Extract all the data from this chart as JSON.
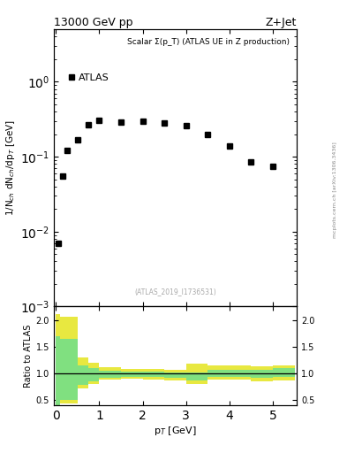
{
  "title_left": "13000 GeV pp",
  "title_right": "Z+Jet",
  "main_title": "Scalar Σ(p_T) (ATLAS UE in Z production)",
  "legend_label": "ATLAS",
  "ylabel_main": "1/N$_{ch}$ dN$_{ch}$/dp$_T$ [GeV]",
  "ylabel_ratio": "Ratio to ATLAS",
  "xlabel": "p$_T$ [GeV]",
  "watermark": "(ATLAS_2019_I1736531)",
  "side_text": "mcplots.cern.ch [arXiv:1306.3436]",
  "data_x": [
    0.05,
    0.15,
    0.25,
    0.5,
    0.75,
    1.0,
    1.5,
    2.0,
    2.5,
    3.0,
    3.5,
    4.0,
    4.5,
    5.0
  ],
  "data_y": [
    0.007,
    0.055,
    0.12,
    0.17,
    0.27,
    0.31,
    0.29,
    0.3,
    0.28,
    0.26,
    0.2,
    0.14,
    0.085,
    0.075
  ],
  "ylim_main": [
    0.001,
    5.0
  ],
  "xlim": [
    -0.05,
    5.55
  ],
  "xlim_ratio": [
    -0.05,
    5.55
  ],
  "xticks": [
    0,
    1,
    2,
    3,
    4,
    5
  ],
  "ylim_ratio": [
    0.4,
    2.25
  ],
  "ratio_yticks": [
    0.5,
    1.0,
    1.5,
    2.0
  ],
  "green_band_edges": [
    0.0,
    0.1,
    0.5,
    0.75,
    1.0,
    1.5,
    2.0,
    2.5,
    3.0,
    3.5,
    4.0,
    4.5,
    5.0,
    5.5
  ],
  "green_band_lo": [
    0.4,
    0.5,
    0.78,
    0.85,
    0.92,
    0.94,
    0.93,
    0.91,
    0.86,
    0.94,
    0.94,
    0.92,
    0.94,
    0.94
  ],
  "green_band_hi": [
    1.7,
    1.65,
    1.15,
    1.1,
    1.05,
    1.03,
    1.03,
    1.01,
    1.01,
    1.07,
    1.07,
    1.06,
    1.1,
    1.1
  ],
  "yellow_band_edges": [
    0.0,
    0.1,
    0.5,
    0.75,
    1.0,
    1.5,
    2.0,
    2.5,
    3.0,
    3.5,
    4.0,
    4.5,
    5.0,
    5.5
  ],
  "yellow_band_lo": [
    0.38,
    0.43,
    0.72,
    0.8,
    0.88,
    0.9,
    0.88,
    0.87,
    0.8,
    0.88,
    0.88,
    0.85,
    0.87,
    0.87
  ],
  "yellow_band_hi": [
    2.1,
    2.05,
    1.3,
    1.2,
    1.12,
    1.08,
    1.08,
    1.06,
    1.18,
    1.15,
    1.15,
    1.14,
    1.15,
    1.15
  ],
  "green_color": "#80e080",
  "yellow_color": "#e8e840",
  "marker_color": "#000000",
  "line_color": "#000000",
  "bg_color": "#ffffff"
}
